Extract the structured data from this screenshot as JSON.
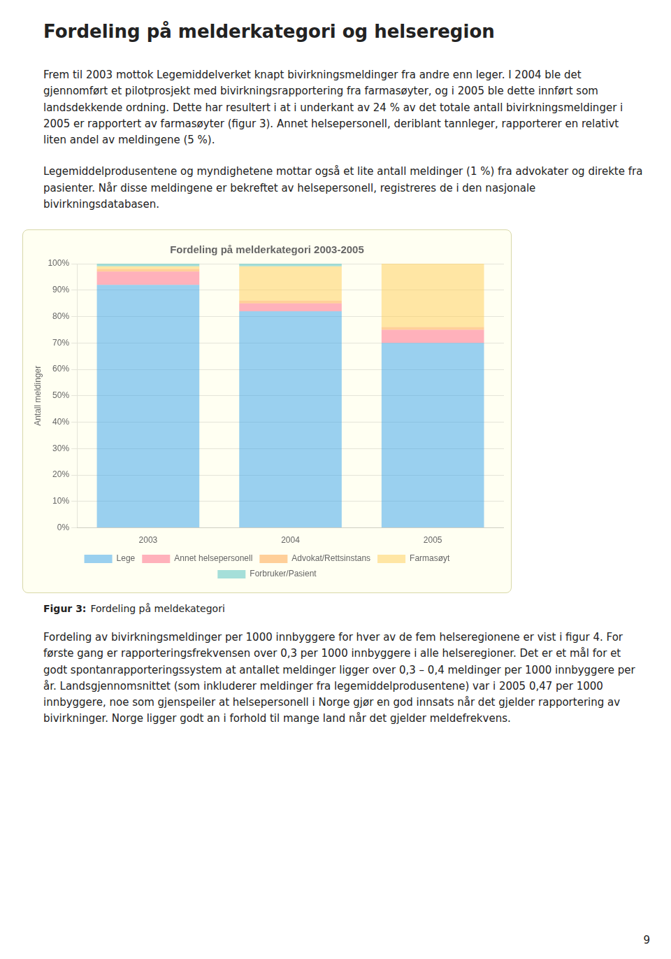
{
  "page_title": "Fordeling på melderkategori og helseregion",
  "text_above": [
    "Frem til 2003 mottok Legemiddelverket knapt bivirkningsmeldinger fra andre enn leger. I 2004 ble det gjennomført et pilotprosjekt med bivirkningsrapportering fra farmasøyter, og i 2005 ble dette innført som landsdekkende ordning. Dette har resultert i at i underkant av 24 % av det totale antall bivirkningsmeldinger i 2005 er rapportert av farmasøyter (figur 3). Annet helsepersonell, deriblant tannleger, rapporterer en relativt liten andel av meldingene (5 %).",
    "Legemiddelprodusentene og myndighetene mottar også et lite antall meldinger (1 %) fra advokater og direkte fra pasienter. Når disse meldingene er bekreftet av helsepersonell, registreres de i den nasjonale bivirkningsdatabasen."
  ],
  "caption": {
    "label": "Figur 3:",
    "text": "Fordeling på meldekategori"
  },
  "text_below": [
    "Fordeling av bivirkningsmeldinger per 1000 innbyggere for hver av de fem helseregionene er vist i figur 4. For første gang er rapporteringsfrekvensen over 0,3 per 1000 innbyggere i alle helseregioner. Det er et mål for et godt spontanrapporteringssystem at antallet meldinger ligger over 0,3 – 0,4 meldinger per 1000 innbyggere per år. Landsgjennomsnittet (som inkluderer meldinger fra legemiddelprodusentene) var i 2005 0,47 per 1000 innbyggere, noe som gjenspeiler at helsepersonell i Norge gjør en god innsats når det gjelder rapportering av bivirkninger. Norge ligger godt an i forhold til mange land når det gjelder meldefrekvens."
  ],
  "page_number": "9",
  "chart_data": {
    "type": "bar",
    "title": "Fordeling på melderkategori 2003-2005",
    "ylabel": "Antall meldinger",
    "categories": [
      "2003",
      "2004",
      "2005"
    ],
    "series": [
      {
        "name": "Lege",
        "values": [
          92,
          82,
          70
        ]
      },
      {
        "name": "Annet helsepersonell",
        "values": [
          5,
          3,
          5
        ]
      },
      {
        "name": "Advokat/Rettsinstans",
        "values": [
          1,
          1,
          1
        ]
      },
      {
        "name": "Farmasøyt",
        "values": [
          1,
          13,
          24
        ]
      },
      {
        "name": "Forbruker/Pasient",
        "values": [
          1,
          1,
          0
        ]
      }
    ],
    "stacked": true,
    "ylim": [
      0,
      100
    ],
    "yticks": [
      {
        "value": 0,
        "label": "0%"
      },
      {
        "value": 10,
        "label": "10%"
      },
      {
        "value": 20,
        "label": "20%"
      },
      {
        "value": 30,
        "label": "30%"
      },
      {
        "value": 40,
        "label": "40%"
      },
      {
        "value": 50,
        "label": "50%"
      },
      {
        "value": 60,
        "label": "60%"
      },
      {
        "value": 70,
        "label": "70%"
      },
      {
        "value": 80,
        "label": "80%"
      },
      {
        "value": 90,
        "label": "90%"
      },
      {
        "value": 100,
        "label": "100%"
      }
    ],
    "grid": true,
    "legend": "bottom"
  }
}
